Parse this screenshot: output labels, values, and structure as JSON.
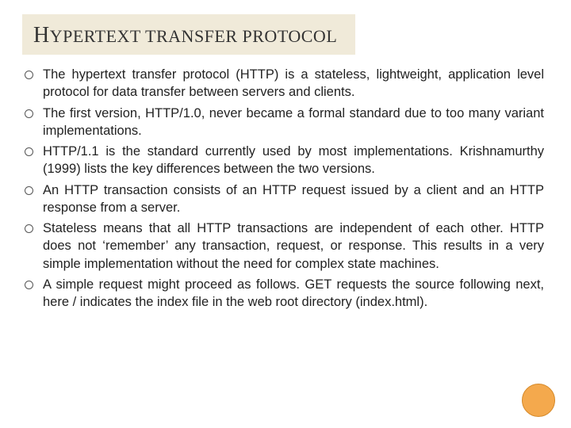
{
  "slide": {
    "title_first": "H",
    "title_rest": "YPERTEXT TRANSFER PROTOCOL",
    "title_box_bg": "#f0ead9",
    "title_color": "#333333",
    "title_first_fontsize": 28,
    "title_rest_fontsize": 22,
    "body_fontsize": 16.5,
    "body_color": "#222222",
    "bullet_border_color": "#555555",
    "background_color": "#ffffff",
    "accent_circle_color": "#f4a94d",
    "accent_circle_border": "#d68a2a",
    "bullets": [
      "The hypertext transfer protocol (HTTP) is a stateless, lightweight, application level protocol for data transfer between servers and clients.",
      "The first version, HTTP/1.0, never became a formal standard due to too many variant implementations.",
      "HTTP/1.1 is the standard currently used by most implementations. Krishnamurthy (1999) lists the key differences between the two versions.",
      "An HTTP transaction consists of an HTTP request issued by a client and an HTTP response from a server.",
      "Stateless means that all HTTP transactions are independent of each other. HTTP does not ‘remember’ any transaction, request, or response. This results in a very simple implementation without the need for complex state machines.",
      "A simple request might proceed as follows. GET requests the source following next, here / indicates the index file in the web root directory (index.html)."
    ]
  }
}
